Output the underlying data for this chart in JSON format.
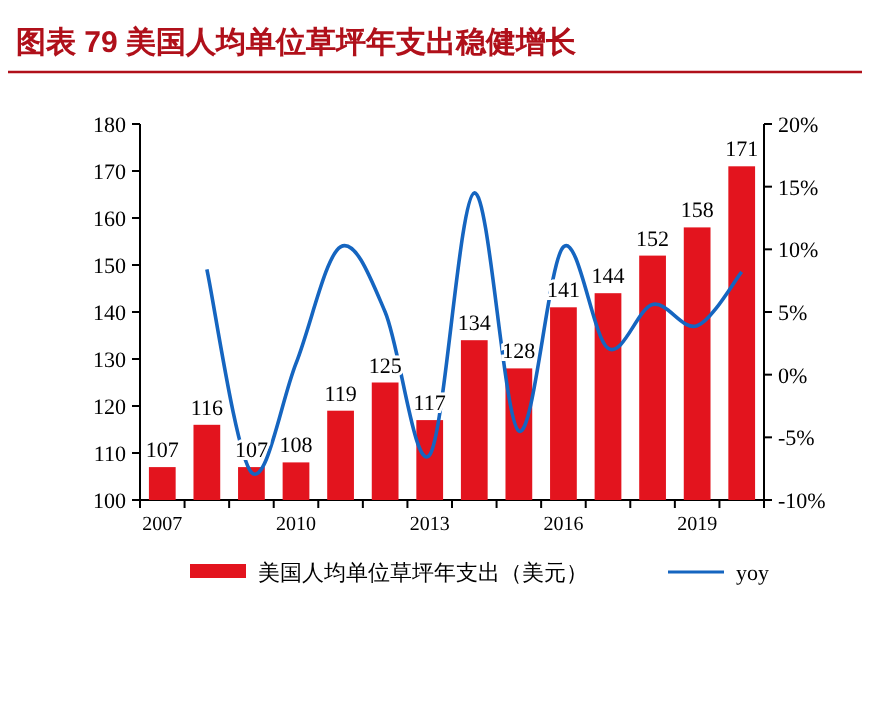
{
  "chart_data": {
    "type": "bar",
    "title": "图表 79  美国人均单位草坪年支出稳健增长",
    "categories": [
      "2007",
      null,
      null,
      "2010",
      null,
      null,
      "2013",
      null,
      null,
      "2016",
      null,
      null,
      "2019",
      null
    ],
    "series": [
      {
        "name": "美国人均单位草坪年支出（美元）",
        "color": "#e3141e",
        "values": [
          107,
          116,
          107,
          108,
          119,
          125,
          117,
          134,
          128,
          141,
          144,
          152,
          158,
          171
        ],
        "value_labels": [
          "107",
          "116",
          "107",
          "108",
          "119",
          "125",
          "117",
          "134",
          "128",
          "141",
          "144",
          "152",
          "158",
          "171"
        ]
      },
      {
        "name": "yoy",
        "type": "line",
        "axis": "y2",
        "color": "#1565c0",
        "values": [
          null,
          8.4,
          -7.8,
          0.9,
          10.2,
          5.0,
          -6.4,
          14.5,
          -4.5,
          10.2,
          2.1,
          5.6,
          3.9,
          8.2
        ]
      }
    ],
    "ylim": [
      100,
      180
    ],
    "yticks": [
      100,
      110,
      120,
      130,
      140,
      150,
      160,
      170,
      180
    ],
    "y2lim": [
      -10,
      20
    ],
    "y2ticks": [
      {
        "value": -10,
        "label": "-10%"
      },
      {
        "value": -5,
        "label": "-5%"
      },
      {
        "value": 0,
        "label": "0%"
      },
      {
        "value": 5,
        "label": "5%"
      },
      {
        "value": 10,
        "label": "10%"
      },
      {
        "value": 15,
        "label": "15%"
      },
      {
        "value": 20,
        "label": "20%"
      }
    ],
    "legend": "bottom",
    "grid": false
  }
}
